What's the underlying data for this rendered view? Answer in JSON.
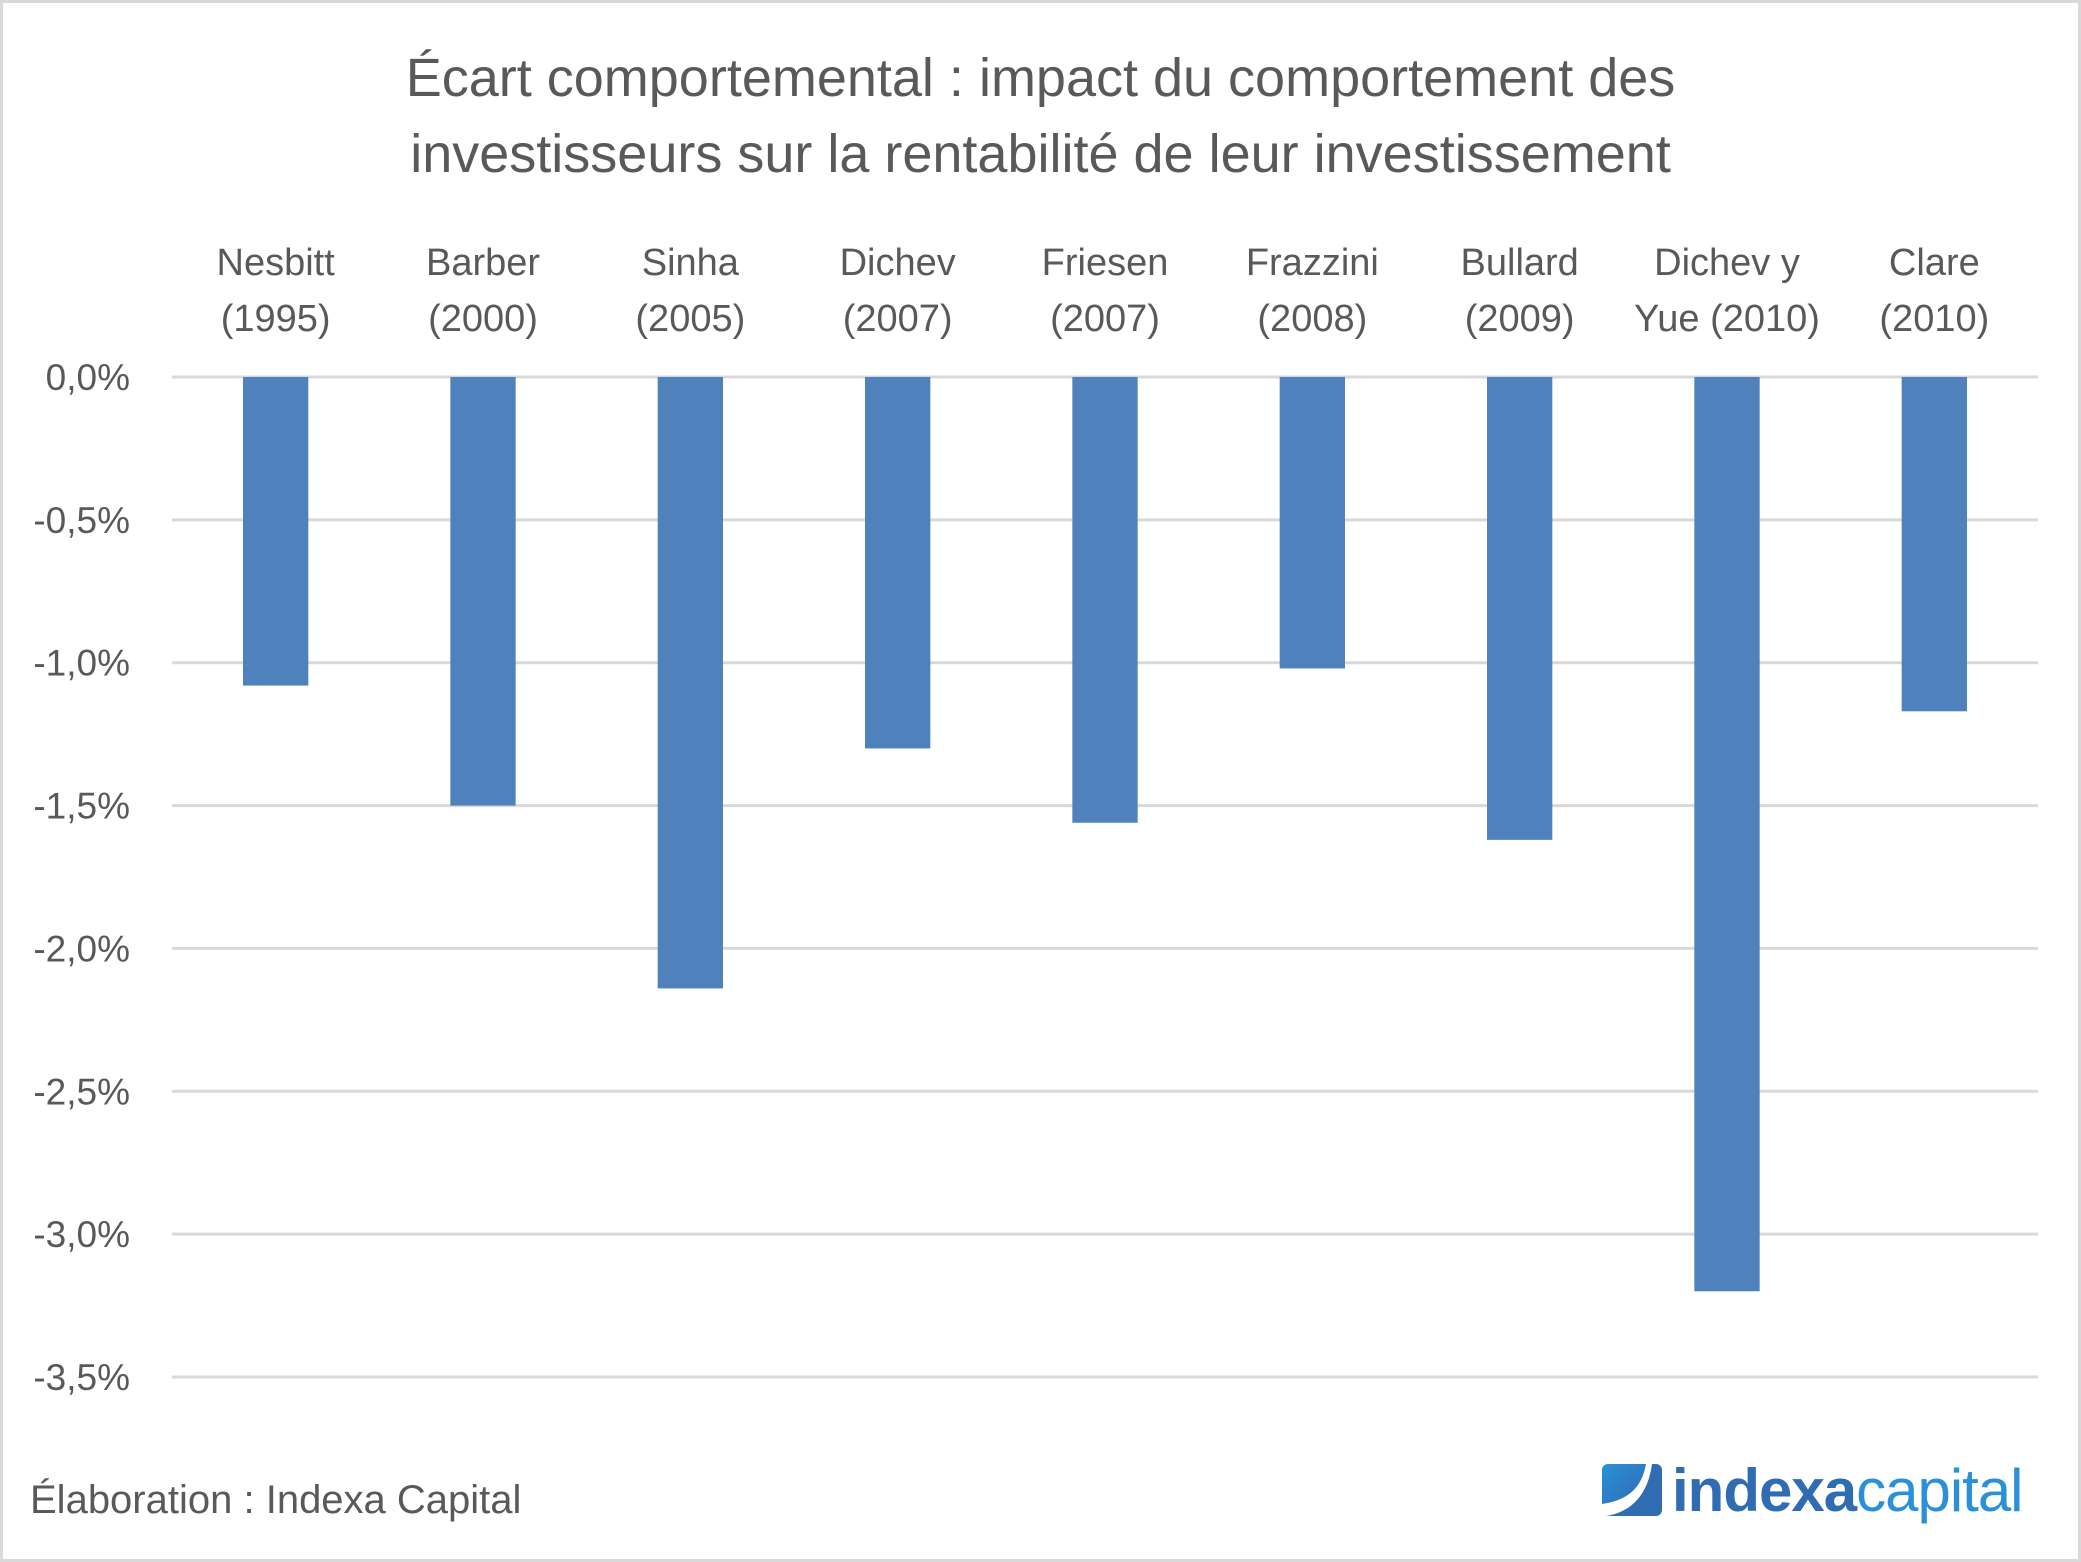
{
  "title": {
    "lines": [
      "Écart comportemental : impact du comportement des",
      "investisseurs sur la rentabilité de leur investissement"
    ]
  },
  "footer": {
    "source": "Élaboration : Indexa Capital"
  },
  "logo": {
    "strong": "indexa",
    "light": "capital",
    "icon": "indexa-logo-mark-icon",
    "strong_color": "#2f6cb1",
    "light_color": "#2a90d8"
  },
  "colors": {
    "bar": "#4f81bd",
    "grid": "#d9d9d9",
    "text": "#595959"
  },
  "chart_data": {
    "type": "bar",
    "title": "Écart comportemental : impact du comportement des investisseurs sur la rentabilité de leur investissement",
    "xlabel": "",
    "ylabel": "",
    "x_axis_position": "top",
    "grid": true,
    "legend": "none",
    "categories": [
      [
        "Nesbitt",
        "(1995)"
      ],
      [
        "Barber",
        "(2000)"
      ],
      [
        "Sinha",
        "(2005)"
      ],
      [
        "Dichev",
        "(2007)"
      ],
      [
        "Friesen",
        "(2007)"
      ],
      [
        "Frazzini",
        "(2008)"
      ],
      [
        "Bullard",
        "(2009)"
      ],
      [
        "Dichev y",
        "Yue (2010)"
      ],
      [
        "Clare",
        "(2010)"
      ]
    ],
    "values": [
      -1.08,
      -1.5,
      -2.14,
      -1.3,
      -1.56,
      -1.02,
      -1.62,
      -3.2,
      -1.17
    ],
    "unit": "%",
    "ylim": [
      -3.5,
      0
    ],
    "yticks": [
      0,
      -0.5,
      -1.0,
      -1.5,
      -2.0,
      -2.5,
      -3.0,
      -3.5
    ],
    "ytick_labels": [
      "0,0%",
      "-0,5%",
      "-1,0%",
      "-1,5%",
      "-2,0%",
      "-2,5%",
      "-3,0%",
      "-3,5%"
    ]
  }
}
